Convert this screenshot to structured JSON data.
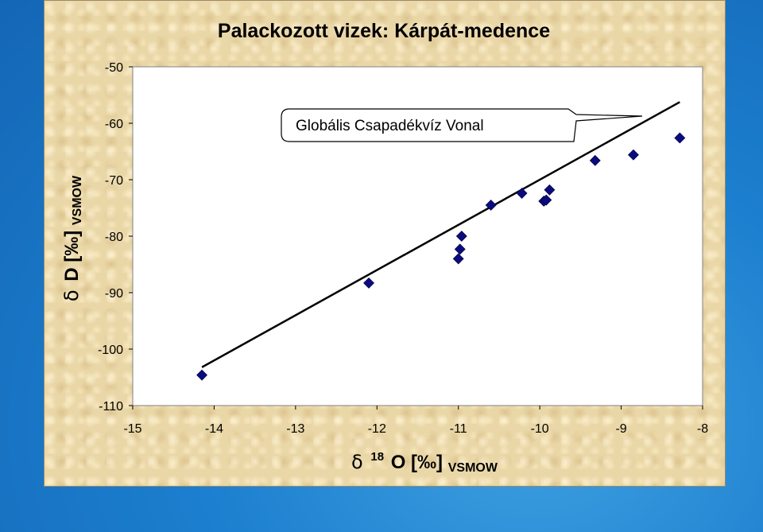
{
  "chart_data": {
    "type": "scatter",
    "title": "Palackozott vizek: Kárpát-medence",
    "xlabel": {
      "delta": "δ",
      "sup": "18",
      "main": "O [‰]",
      "sub": "VSMOW"
    },
    "ylabel": {
      "delta": "δ",
      "main": "D [‰]",
      "sub": "VSMOW"
    },
    "xlim": [
      -15,
      -8
    ],
    "ylim": [
      -110,
      -50
    ],
    "xticks": [
      "-15",
      "-14",
      "-13",
      "-12",
      "-11",
      "-10",
      "-9",
      "-8"
    ],
    "yticks": [
      "-50",
      "-60",
      "-70",
      "-80",
      "-90",
      "-100",
      "-110"
    ],
    "grid": false,
    "points": [
      {
        "x": -14.15,
        "y": -104.6
      },
      {
        "x": -12.1,
        "y": -88.3
      },
      {
        "x": -11.0,
        "y": -84.0
      },
      {
        "x": -10.98,
        "y": -82.3
      },
      {
        "x": -10.96,
        "y": -80.0
      },
      {
        "x": -10.6,
        "y": -74.5
      },
      {
        "x": -10.22,
        "y": -72.4
      },
      {
        "x": -9.95,
        "y": -73.8
      },
      {
        "x": -9.92,
        "y": -73.6
      },
      {
        "x": -9.88,
        "y": -71.8
      },
      {
        "x": -9.32,
        "y": -66.6
      },
      {
        "x": -8.85,
        "y": -65.6
      },
      {
        "x": -8.28,
        "y": -62.6
      }
    ],
    "line": {
      "label": "Globális Csapadékvíz Vonal",
      "x": [
        -14.15,
        -8.28
      ],
      "y": [
        -103.2,
        -56.24
      ]
    },
    "colors": {
      "marker": "#0b0b80",
      "line": "#000000",
      "panel": "#ead7a8"
    }
  }
}
